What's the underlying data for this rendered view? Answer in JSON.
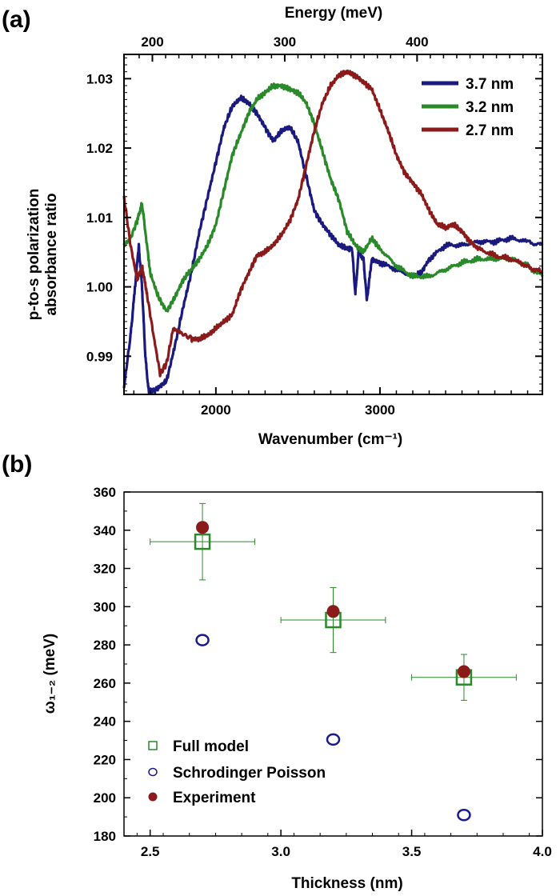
{
  "panel_labels": {
    "a": "(a)",
    "b": "(b)"
  },
  "chart_data": [
    {
      "type": "line",
      "panel": "(a)",
      "xlabel": "Wavenumber (cm⁻¹)",
      "x2label": "Energy (meV)",
      "ylabel_line1": "p-to-s polarization",
      "ylabel_line2": "absorbance ratio",
      "xlim": [
        1440,
        3990
      ],
      "ylim": [
        0.9845,
        1.0335
      ],
      "x_ticks": [
        2000,
        3000
      ],
      "x_tick_labels": [
        "2000",
        "3000"
      ],
      "x2_ticks": [
        200,
        300,
        400
      ],
      "x2_tick_labels": [
        "200",
        "300",
        "400"
      ],
      "y_ticks": [
        0.99,
        1.0,
        1.01,
        1.02,
        1.03
      ],
      "y_tick_labels": [
        "0.99",
        "1.00",
        "1.01",
        "1.02",
        "1.03"
      ],
      "grid": false,
      "legend_position": "top-right",
      "series": [
        {
          "name": "3.7 nm",
          "color": "#1a1a7e",
          "x": [
            1440,
            1480,
            1500,
            1530,
            1550,
            1570,
            1590,
            1620,
            1650,
            1700,
            1750,
            1800,
            1850,
            1900,
            1950,
            2000,
            2050,
            2100,
            2150,
            2200,
            2250,
            2300,
            2350,
            2400,
            2450,
            2500,
            2550,
            2600,
            2650,
            2700,
            2750,
            2800,
            2830,
            2850,
            2870,
            2900,
            2920,
            2950,
            3000,
            3100,
            3200,
            3250,
            3300,
            3400,
            3500,
            3600,
            3700,
            3800,
            3900,
            3990
          ],
          "y": [
            0.9855,
            0.993,
            0.998,
            1.006,
            1.0,
            0.99,
            0.985,
            0.985,
            0.9855,
            0.9865,
            0.9915,
            0.997,
            1.002,
            1.008,
            1.013,
            1.018,
            1.023,
            1.026,
            1.0272,
            1.0265,
            1.025,
            1.023,
            1.021,
            1.0225,
            1.023,
            1.021,
            1.016,
            1.011,
            1.009,
            1.0075,
            1.006,
            1.0055,
            1.0055,
            0.999,
            1.005,
            1.004,
            0.998,
            1.004,
            1.0035,
            1.0025,
            1.0015,
            1.002,
            1.004,
            1.006,
            1.006,
            1.0065,
            1.0065,
            1.007,
            1.0065,
            1.006
          ]
        },
        {
          "name": "3.2 nm",
          "color": "#2a8a2a",
          "x": [
            1440,
            1480,
            1520,
            1550,
            1570,
            1600,
            1650,
            1700,
            1750,
            1800,
            1850,
            1900,
            1950,
            2000,
            2050,
            2100,
            2150,
            2200,
            2250,
            2300,
            2350,
            2400,
            2450,
            2500,
            2550,
            2600,
            2650,
            2700,
            2750,
            2800,
            2850,
            2900,
            2950,
            3000,
            3100,
            3200,
            3300,
            3400,
            3500,
            3600,
            3700,
            3800,
            3900,
            3990
          ],
          "y": [
            1.006,
            1.007,
            1.0095,
            1.012,
            1.008,
            1.002,
            0.9985,
            0.9965,
            0.9985,
            1.001,
            1.0025,
            1.004,
            1.006,
            1.009,
            1.014,
            1.019,
            1.022,
            1.025,
            1.027,
            1.028,
            1.029,
            1.029,
            1.0285,
            1.028,
            1.0265,
            1.0235,
            1.0195,
            1.0155,
            1.0125,
            1.008,
            1.006,
            1.005,
            1.007,
            1.0055,
            1.003,
            1.0015,
            1.0015,
            1.0025,
            1.0035,
            1.004,
            1.004,
            1.004,
            1.003,
            1.0015
          ]
        },
        {
          "name": "2.7 nm",
          "color": "#8b1a1a",
          "x": [
            1440,
            1480,
            1520,
            1550,
            1580,
            1620,
            1660,
            1700,
            1740,
            1780,
            1850,
            1900,
            1950,
            2000,
            2050,
            2100,
            2150,
            2200,
            2250,
            2300,
            2350,
            2400,
            2450,
            2500,
            2550,
            2600,
            2650,
            2700,
            2750,
            2800,
            2850,
            2900,
            2950,
            3000,
            3050,
            3100,
            3150,
            3200,
            3250,
            3300,
            3350,
            3400,
            3450,
            3500,
            3550,
            3600,
            3700,
            3800,
            3900,
            3990
          ],
          "y": [
            1.013,
            1.006,
            1.001,
            1.003,
            0.999,
            0.993,
            0.9875,
            0.989,
            0.994,
            0.9935,
            0.9925,
            0.9925,
            0.993,
            0.994,
            0.995,
            0.996,
            0.9995,
            1.002,
            1.0045,
            1.005,
            1.006,
            1.0075,
            1.0095,
            1.0125,
            1.0175,
            1.0225,
            1.0265,
            1.029,
            1.0305,
            1.031,
            1.0305,
            1.0295,
            1.0285,
            1.0255,
            1.0225,
            1.019,
            1.0165,
            1.015,
            1.0135,
            1.011,
            1.009,
            1.0085,
            1.009,
            1.008,
            1.0065,
            1.0055,
            1.0045,
            1.004,
            1.003,
            1.002
          ]
        }
      ]
    },
    {
      "type": "scatter",
      "panel": "(b)",
      "xlabel": "Thickness (nm)",
      "ylabel": "ω₁₋₂ (meV)",
      "xlim": [
        2.4,
        4.0
      ],
      "ylim": [
        180,
        360
      ],
      "x_ticks": [
        2.5,
        3.0,
        3.5,
        4.0
      ],
      "x_tick_labels": [
        "2.5",
        "3.0",
        "3.5",
        "4.0"
      ],
      "y_ticks": [
        180,
        200,
        220,
        240,
        260,
        280,
        300,
        320,
        340,
        360
      ],
      "y_tick_labels": [
        "180",
        "200",
        "220",
        "240",
        "260",
        "280",
        "300",
        "320",
        "340",
        "360"
      ],
      "grid": false,
      "legend_position": "bottom-left",
      "series": [
        {
          "name": "Full model",
          "marker": "open-square",
          "color": "#2a8a2a",
          "x": [
            2.7,
            3.2,
            3.7
          ],
          "y": [
            334,
            293,
            263
          ],
          "xerr": [
            0.2,
            0.2,
            0.2
          ],
          "yerr": [
            20,
            17,
            12
          ]
        },
        {
          "name": "Schrodinger Poisson",
          "marker": "open-circle",
          "color": "#1a1a8e",
          "x": [
            2.7,
            3.2,
            3.7
          ],
          "y": [
            282.5,
            230.5,
            191
          ]
        },
        {
          "name": "Experiment",
          "marker": "filled-circle",
          "color": "#8b1a1a",
          "x": [
            2.7,
            3.2,
            3.7
          ],
          "y": [
            341.5,
            297.5,
            266
          ]
        }
      ]
    }
  ]
}
